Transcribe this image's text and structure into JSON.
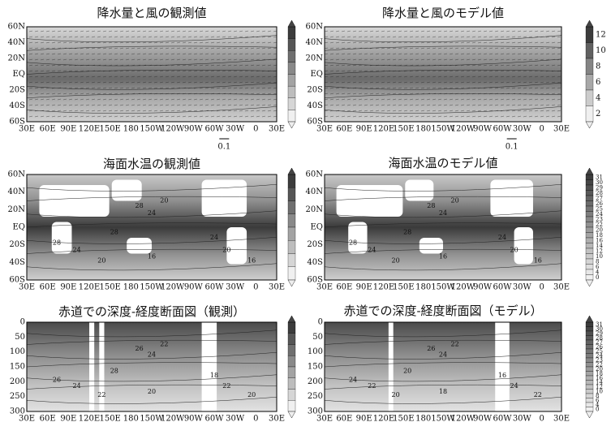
{
  "panels": [
    {
      "title": "降水量と風の観測値",
      "kind": "rain",
      "contour_labels": []
    },
    {
      "title": "降水量と風のモデル値",
      "kind": "rain",
      "contour_labels": []
    },
    {
      "title": "海面水温の観測値",
      "kind": "sst",
      "contour_labels": [
        "28",
        "24",
        "20",
        "28",
        "28",
        "24",
        "20",
        "16",
        "24",
        "20",
        "16"
      ]
    },
    {
      "title": "海面水温のモデル値",
      "kind": "sst",
      "contour_labels": [
        "28",
        "24",
        "20",
        "28",
        "28",
        "24",
        "20",
        "16",
        "24",
        "20",
        "16"
      ]
    },
    {
      "title": "赤道での深度-経度断面図（観測）",
      "kind": "depth",
      "contour_labels": [
        "26",
        "24",
        "22",
        "28",
        "26",
        "24",
        "22",
        "20",
        "18",
        "22",
        "20"
      ]
    },
    {
      "title": "赤道での深度-経度断面図（モデル）",
      "kind": "depth",
      "contour_labels": [
        "26",
        "24",
        "22",
        "20",
        "24",
        "22",
        "20",
        "18",
        "16",
        "24",
        "22"
      ]
    }
  ],
  "lon_ticks": [
    "30E",
    "60E",
    "90E",
    "120E",
    "150E",
    "180",
    "150W",
    "120W",
    "90W",
    "60W",
    "30W",
    "0",
    "30E"
  ],
  "lat_ticks": [
    "60N",
    "40N",
    "20N",
    "EQ",
    "20S",
    "40S",
    "60S"
  ],
  "depth_ticks": [
    0,
    50,
    100,
    150,
    200,
    250,
    300
  ],
  "vector_scale": "0.1",
  "colorbars": [
    {
      "labels": [
        "12",
        "10",
        "8",
        "6",
        "4",
        "2"
      ]
    },
    {
      "labels": [
        "31",
        "30",
        "29",
        "28",
        "27",
        "26",
        "25",
        "24",
        "23",
        "22",
        "20",
        "18",
        "16",
        "14",
        "12",
        "10",
        "8",
        "6",
        "4",
        "0"
      ]
    },
    {
      "labels": [
        "31",
        "30",
        "29",
        "28",
        "27",
        "26",
        "25",
        "24",
        "23",
        "22",
        "20",
        "18",
        "16",
        "14",
        "12",
        "10",
        "8",
        "6",
        "4",
        "0"
      ]
    }
  ]
}
